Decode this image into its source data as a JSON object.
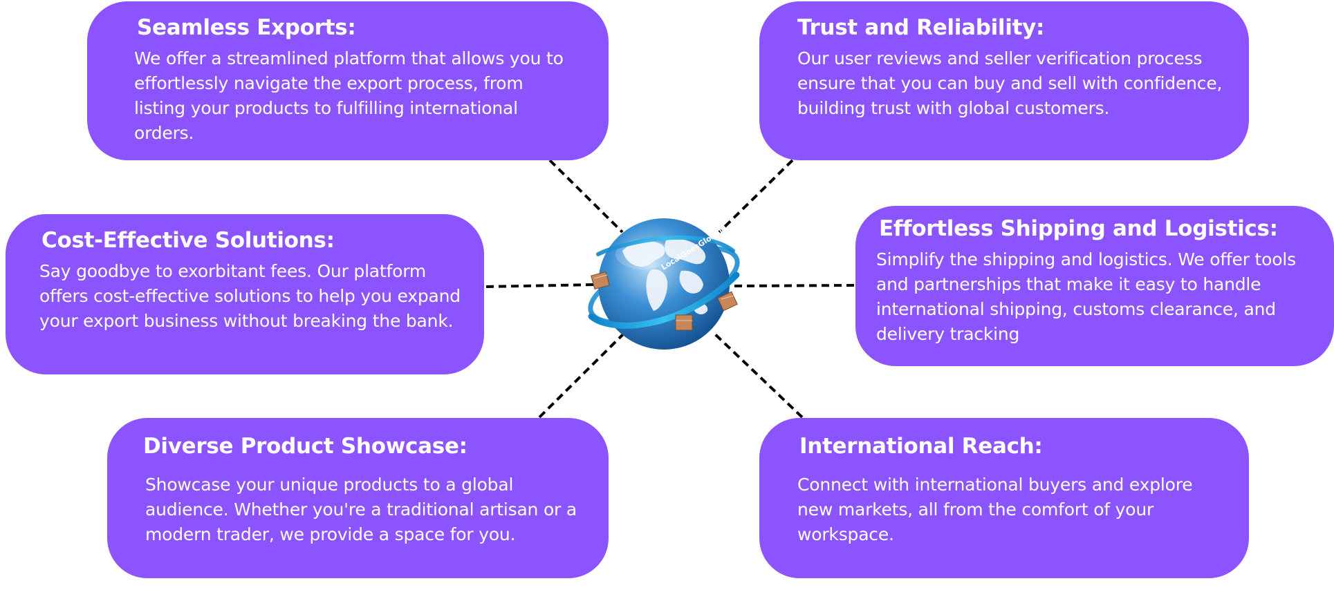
{
  "cards": {
    "seamless_exports": {
      "title": "Seamless Exports:",
      "body": "We offer a streamlined platform that allows you to effortlessly navigate the export process, from listing your products to fulfilling international orders."
    },
    "trust_reliability": {
      "title": "Trust and Reliability:",
      "body": "Our user reviews and seller verification process ensure that you can buy and sell with confidence, building trust with global customers."
    },
    "cost_effective": {
      "title": "Cost-Effective Solutions:",
      "body": " Say goodbye to exorbitant fees. Our platform offers cost-effective solutions to help you expand your export business without breaking the bank."
    },
    "shipping_logistics": {
      "title": "Effortless Shipping and Logistics:",
      "body": " Simplify the shipping and logistics. We offer tools and partnerships that make it easy to handle international shipping, customs clearance, and delivery tracking"
    },
    "diverse_showcase": {
      "title": "Diverse Product Showcase:",
      "body": "Showcase your unique products to a global audience. Whether you're a traditional artisan or a modern trader, we provide a space for you."
    },
    "international_reach": {
      "title": "International Reach:",
      "body": "Connect with international buyers and explore new markets, all from the comfort of your workspace."
    }
  },
  "globe": {
    "icon": "globe-with-parcels-icon",
    "ring_text": "LocalGoesGlobal"
  },
  "colors": {
    "card_fill": "#8c54ff",
    "card_text": "#ffffff",
    "connector": "#000000",
    "globe_ocean": "#3b8fd4",
    "globe_land": "#eef4fb",
    "ring": "#1aa3e0",
    "parcel": "#c8875a"
  }
}
